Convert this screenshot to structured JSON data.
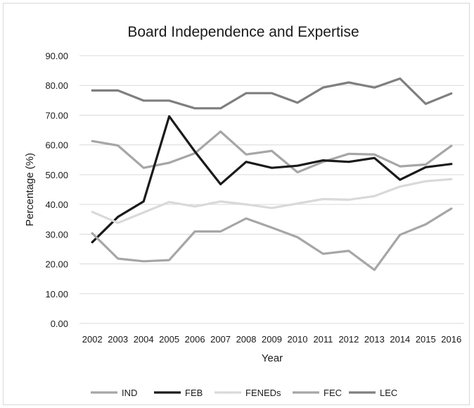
{
  "chart_data": {
    "type": "line",
    "title": "Board Independence and Expertise",
    "xlabel": "Year",
    "ylabel": "Percentage (%)",
    "categories": [
      "2002",
      "2003",
      "2004",
      "2005",
      "2006",
      "2007",
      "2008",
      "2009",
      "2010",
      "2011",
      "2012",
      "2013",
      "2014",
      "2015",
      "2016"
    ],
    "ylim": [
      0,
      90
    ],
    "yticks": [
      "0.00",
      "10.00",
      "20.00",
      "30.00",
      "40.00",
      "50.00",
      "60.00",
      "70.00",
      "80.00",
      "90.00"
    ],
    "grid": true,
    "legend_position": "bottom",
    "series": [
      {
        "name": "IND",
        "color": "#a6a6a6",
        "values": [
          61.3,
          59.8,
          52.3,
          54.0,
          57.2,
          64.5,
          56.8,
          58.0,
          50.8,
          54.3,
          57.0,
          56.8,
          52.8,
          53.4,
          59.7
        ]
      },
      {
        "name": "FEB",
        "color": "#1a1a1a",
        "values": [
          27.3,
          35.8,
          41.0,
          69.6,
          57.8,
          46.8,
          54.3,
          52.3,
          53.0,
          54.8,
          54.3,
          55.6,
          48.3,
          52.5,
          53.6
        ]
      },
      {
        "name": "FENEDs",
        "color": "#d9d9d9",
        "values": [
          37.5,
          33.8,
          37.3,
          40.8,
          39.3,
          41.0,
          40.0,
          38.8,
          40.3,
          41.8,
          41.6,
          42.8,
          46.0,
          47.8,
          48.5
        ]
      },
      {
        "name": "FEC",
        "color": "#a6a6a6",
        "values": [
          30.3,
          21.8,
          20.9,
          21.3,
          30.9,
          30.9,
          35.3,
          32.2,
          29.0,
          23.4,
          24.4,
          18.0,
          29.8,
          33.3,
          38.6
        ]
      },
      {
        "name": "LEC",
        "color": "#7f7f7f",
        "values": [
          78.3,
          78.3,
          74.9,
          74.9,
          72.3,
          72.3,
          77.4,
          77.4,
          74.2,
          79.3,
          81.0,
          79.3,
          82.3,
          73.8,
          77.3
        ]
      }
    ]
  }
}
